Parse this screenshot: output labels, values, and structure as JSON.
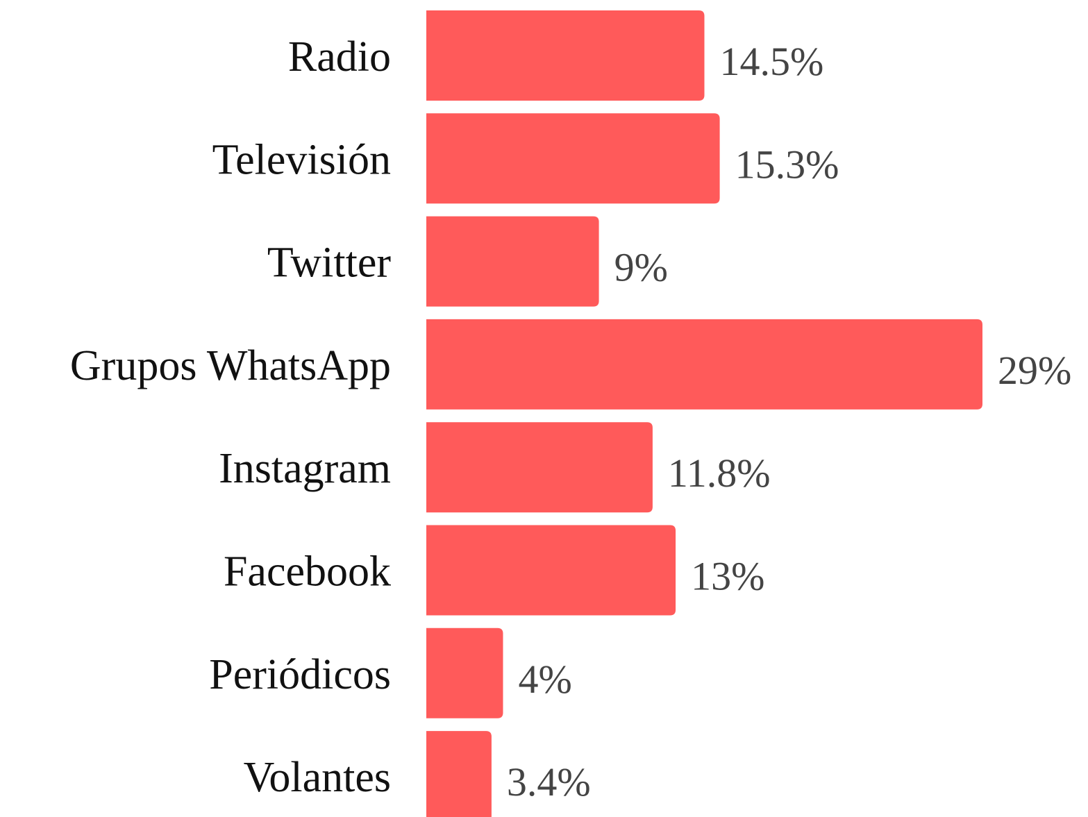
{
  "chart_data": {
    "type": "bar",
    "orientation": "horizontal",
    "color": "#ff5a5a",
    "categories": [
      "Radio",
      "Televisión",
      "Twitter",
      "Grupos WhatsApp",
      "Instagram",
      "Facebook",
      "Periódicos",
      "Volantes"
    ],
    "values": [
      14.5,
      15.3,
      9,
      29,
      11.8,
      13,
      4,
      3.4
    ],
    "value_labels": [
      "14.5%",
      "15.3%",
      "9%",
      "29%",
      "11.8%",
      "13%",
      "4%",
      "3.4%"
    ]
  }
}
